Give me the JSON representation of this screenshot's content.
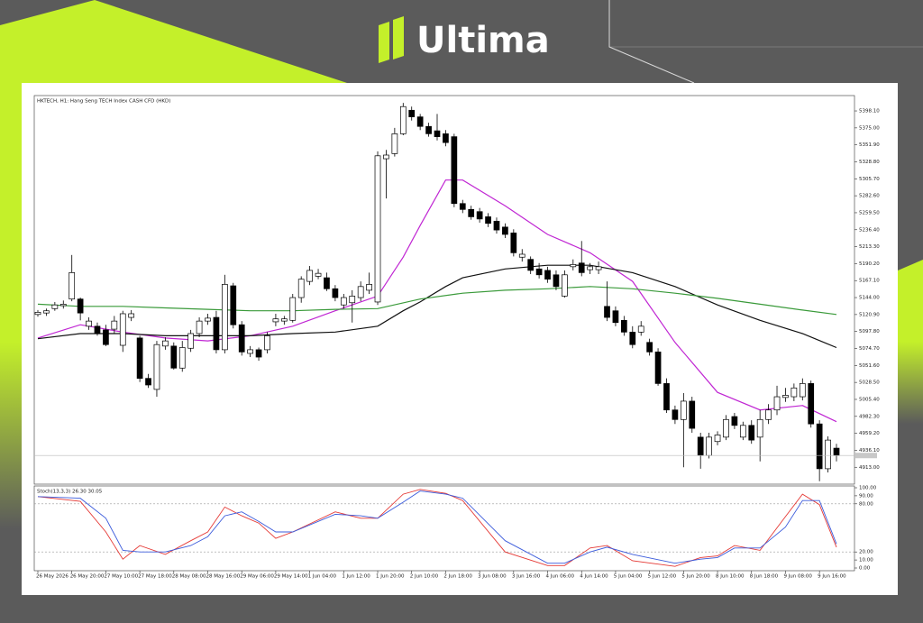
{
  "header": {
    "logo": "Ultima"
  },
  "chart_data": [
    {
      "type": "candlestick",
      "title": "HKTECH, H1:  Hang Seng TECH Index CASH CFD  (HKD)",
      "categories": [
        "26 May 2026",
        null,
        null,
        null,
        "26 May 20:00",
        null,
        null,
        null,
        "27 May 10:00",
        null,
        null,
        null,
        "27 May 18:00",
        null,
        null,
        null,
        "28 May 08:00",
        null,
        null,
        null,
        "28 May 16:00",
        null,
        null,
        null,
        "29 May 06:00",
        null,
        null,
        null,
        "29 May 14:00",
        null,
        null,
        null,
        "1 Jun 04:00",
        null,
        null,
        null,
        "1 Jun 12:00",
        null,
        null,
        null,
        "1 Jun 20:00",
        null,
        null,
        null,
        "2 Jun 10:00",
        null,
        null,
        null,
        "2 Jun 18:00",
        null,
        null,
        null,
        "3 Jun 08:00",
        null,
        null,
        null,
        "3 Jun 16:00",
        null,
        null,
        null,
        "4 Jun 06:00",
        null,
        null,
        null,
        "4 Jun 14:00",
        null,
        null,
        null,
        "5 Jun 04:00",
        null,
        null,
        null,
        "5 Jun 12:00",
        null,
        null,
        null,
        "5 Jun 20:00",
        null,
        null,
        null,
        "8 Jun 10:00",
        null,
        null,
        null,
        "8 Jun 18:00",
        null,
        null,
        null,
        "9 Jun 08:00",
        null,
        null,
        null,
        "9 Jun 16:00",
        null,
        null
      ],
      "open": [
        5121,
        5123,
        5129,
        5133,
        5142,
        5142,
        5105,
        5105,
        5100,
        5101,
        5079,
        5117,
        5089,
        5034,
        5019,
        5078,
        5078,
        5048,
        5075,
        5095,
        5112,
        5117,
        5073,
        5160,
        5107,
        5068,
        5073,
        5073,
        5111,
        5112,
        5113,
        5144,
        5166,
        5173,
        5171,
        5156,
        5134,
        5137,
        5144,
        5154,
        5138,
        5333,
        5340,
        5367,
        5399,
        5390,
        5377,
        5371,
        5367,
        5363,
        5272,
        5264,
        5261,
        5254,
        5248,
        5240,
        5232,
        5199,
        5196,
        5183,
        5181,
        5175,
        5146,
        5186,
        5191,
        5182,
        5182,
        5132,
        5126,
        5113,
        5097,
        5097,
        5083,
        5070,
        5027,
        4991,
        4978,
        5003,
        4954,
        4929,
        4948,
        4954,
        4982,
        4954,
        4970,
        4954,
        4978,
        4991,
        5008,
        5009,
        5009,
        5027,
        4972,
        4911,
        4939
      ],
      "high": [
        5127,
        5129,
        5138,
        5140,
        5202,
        5144,
        5117,
        5110,
        5107,
        5119,
        5126,
        5127,
        5092,
        5040,
        5085,
        5090,
        5083,
        5085,
        5100,
        5117,
        5122,
        5126,
        5175,
        5164,
        5112,
        5078,
        5076,
        5097,
        5122,
        5119,
        5149,
        5173,
        5187,
        5183,
        5178,
        5161,
        5149,
        5154,
        5166,
        5178,
        5343,
        5345,
        5375,
        5409,
        5404,
        5394,
        5382,
        5394,
        5372,
        5367,
        5277,
        5269,
        5266,
        5259,
        5253,
        5245,
        5237,
        5210,
        5200,
        5191,
        5186,
        5181,
        5181,
        5196,
        5221,
        5191,
        5193,
        5166,
        5132,
        5119,
        5105,
        5112,
        5088,
        5075,
        5034,
        4997,
        5014,
        5009,
        4960,
        4960,
        4962,
        4984,
        4987,
        4975,
        4977,
        4991,
        4999,
        5024,
        5021,
        5027,
        5034,
        5031,
        4977,
        4955,
        4945
      ],
      "low": [
        5118,
        5119,
        5126,
        5129,
        5139,
        5113,
        5100,
        5092,
        5078,
        5095,
        5070,
        5112,
        5029,
        5021,
        5009,
        5073,
        5046,
        5043,
        5070,
        5090,
        5107,
        5068,
        5068,
        5102,
        5065,
        5063,
        5058,
        5068,
        5105,
        5107,
        5110,
        5137,
        5161,
        5169,
        5153,
        5139,
        5129,
        5110,
        5139,
        5149,
        5134,
        5279,
        5336,
        5365,
        5385,
        5372,
        5363,
        5358,
        5350,
        5267,
        5259,
        5250,
        5246,
        5240,
        5231,
        5225,
        5200,
        5193,
        5176,
        5170,
        5164,
        5154,
        5144,
        5181,
        5173,
        5176,
        5176,
        5112,
        5105,
        5092,
        5075,
        5092,
        5065,
        5024,
        4987,
        4972,
        4913,
        4960,
        4911,
        4925,
        4943,
        4950,
        4965,
        4950,
        4945,
        4921,
        4972,
        4984,
        5002,
        5003,
        5004,
        4967,
        4894,
        4906,
        4921
      ],
      "close": [
        5124,
        5126,
        5134,
        5135,
        5178,
        5123,
        5112,
        5095,
        5080,
        5112,
        5122,
        5122,
        5034,
        5025,
        5080,
        5085,
        5048,
        5076,
        5095,
        5112,
        5116,
        5073,
        5162,
        5107,
        5070,
        5073,
        5063,
        5092,
        5115,
        5115,
        5144,
        5169,
        5181,
        5177,
        5156,
        5144,
        5144,
        5146,
        5159,
        5162,
        5337,
        5338,
        5367,
        5404,
        5390,
        5377,
        5367,
        5363,
        5355,
        5272,
        5264,
        5254,
        5251,
        5245,
        5236,
        5230,
        5205,
        5203,
        5181,
        5175,
        5169,
        5159,
        5175,
        5189,
        5178,
        5186,
        5186,
        5117,
        5110,
        5097,
        5080,
        5105,
        5070,
        5027,
        4991,
        4978,
        5003,
        4966,
        4929,
        4954,
        4957,
        4978,
        4970,
        4970,
        4950,
        4978,
        4991,
        5009,
        5011,
        5021,
        5027,
        4972,
        4911,
        4950,
        4929
      ],
      "up_color": "#ffffff",
      "down_color": "#000000",
      "ylim": [
        4890,
        5419
      ],
      "yticks": [
        {
          "value": 5398.1,
          "label": "5398.10"
        },
        {
          "value": 5375,
          "label": "5375.00"
        },
        {
          "value": 5351.9,
          "label": "5351.90"
        },
        {
          "value": 5328.8,
          "label": "5328.80"
        },
        {
          "value": 5305.7,
          "label": "5305.70"
        },
        {
          "value": 5282.6,
          "label": "5282.60"
        },
        {
          "value": 5259.5,
          "label": "5259.50"
        },
        {
          "value": 5236.4,
          "label": "5236.40"
        },
        {
          "value": 5213.3,
          "label": "5213.30"
        },
        {
          "value": 5190.2,
          "label": "5190.20"
        },
        {
          "value": 5167.1,
          "label": "5167.10"
        },
        {
          "value": 5144,
          "label": "5144.00"
        },
        {
          "value": 5120.9,
          "label": "5120.90"
        },
        {
          "value": 5097.8,
          "label": "5097.80"
        },
        {
          "value": 5074.7,
          "label": "5074.70"
        },
        {
          "value": 5051.6,
          "label": "5051.60"
        },
        {
          "value": 5028.5,
          "label": "5028.50"
        },
        {
          "value": 5005.4,
          "label": "5005.40"
        },
        {
          "value": 4982.3,
          "label": "4982.30"
        },
        {
          "value": 4959.2,
          "label": "4959.20"
        },
        {
          "value": 4936.1,
          "label": "4936.10"
        },
        {
          "value": 4913,
          "label": "4913.00"
        }
      ],
      "overlays": [
        {
          "color": "#c026d3",
          "x": [
            0,
            5,
            10,
            15,
            20,
            25,
            30,
            35,
            40,
            43,
            45,
            48,
            50,
            55,
            60,
            65,
            70,
            75,
            80,
            85,
            90,
            94
          ],
          "values": [
            5089,
            5107,
            5097,
            5089,
            5085,
            5092,
            5105,
            5126,
            5146,
            5199,
            5242,
            5304,
            5304,
            5269,
            5230,
            5205,
            5166,
            5083,
            5015,
            4991,
            4997,
            4975
          ]
        },
        {
          "color": "#111111",
          "x": [
            0,
            5,
            10,
            15,
            20,
            25,
            30,
            35,
            40,
            43,
            45,
            48,
            50,
            55,
            60,
            65,
            70,
            75,
            80,
            85,
            90,
            94
          ],
          "values": [
            5088,
            5095,
            5095,
            5092,
            5092,
            5092,
            5095,
            5097,
            5105,
            5126,
            5138,
            5159,
            5171,
            5183,
            5188,
            5188,
            5178,
            5159,
            5134,
            5113,
            5095,
            5076
          ]
        },
        {
          "color": "#3a9a3a",
          "x": [
            0,
            5,
            10,
            15,
            20,
            25,
            30,
            35,
            40,
            45,
            50,
            55,
            60,
            65,
            70,
            75,
            80,
            85,
            90,
            94
          ],
          "values": [
            5135,
            5132,
            5132,
            5130,
            5128,
            5126,
            5126,
            5128,
            5129,
            5142,
            5150,
            5154,
            5156,
            5159,
            5156,
            5150,
            5143,
            5135,
            5127,
            5121
          ]
        }
      ]
    },
    {
      "type": "line",
      "title": "Stoch(13,3,3) 26.30 30.05",
      "ylim": [
        0,
        100
      ],
      "yticks": [
        {
          "value": 100,
          "label": "100.00"
        },
        {
          "value": 90,
          "label": "90.00"
        },
        {
          "value": 80,
          "label": "80.00"
        },
        {
          "value": 20,
          "label": "20.00"
        },
        {
          "value": 10,
          "label": "10.00"
        },
        {
          "value": 0,
          "label": "0.00"
        }
      ],
      "levels": [
        80,
        20
      ],
      "series": [
        {
          "color": "#e53935",
          "x": [
            0,
            5,
            8,
            10,
            12,
            15,
            18,
            20,
            22,
            24,
            26,
            28,
            30,
            35,
            38,
            40,
            43,
            45,
            48,
            50,
            55,
            60,
            62,
            65,
            67,
            70,
            75,
            78,
            80,
            82,
            85,
            88,
            90,
            92,
            94
          ],
          "values": [
            89,
            83,
            45,
            11,
            28,
            17,
            34,
            45,
            76,
            65,
            56,
            37,
            45,
            70,
            62,
            62,
            92,
            98,
            93,
            84,
            20,
            3,
            3,
            25,
            28,
            9,
            2,
            13,
            15,
            28,
            22,
            64,
            92,
            79,
            26
          ]
        },
        {
          "color": "#3b5bdb",
          "x": [
            0,
            5,
            8,
            10,
            12,
            15,
            18,
            20,
            22,
            24,
            26,
            28,
            30,
            35,
            38,
            40,
            43,
            45,
            48,
            50,
            55,
            60,
            62,
            65,
            67,
            70,
            75,
            78,
            80,
            82,
            85,
            88,
            90,
            92,
            94
          ],
          "values": [
            89,
            87,
            62,
            22,
            20,
            20,
            28,
            39,
            65,
            70,
            58,
            45,
            45,
            67,
            65,
            62,
            82,
            96,
            92,
            87,
            34,
            6,
            6,
            20,
            26,
            17,
            6,
            11,
            13,
            25,
            25,
            51,
            84,
            84,
            30
          ]
        }
      ]
    }
  ]
}
